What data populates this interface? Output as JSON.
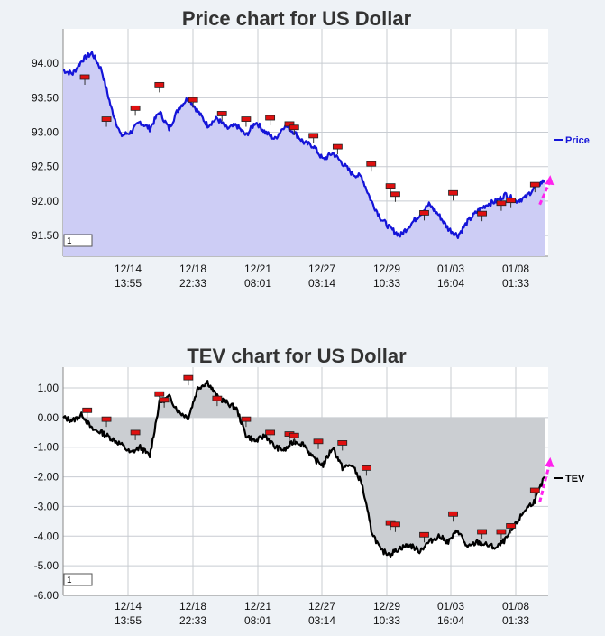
{
  "chart_data": [
    {
      "type": "area",
      "title": "Price chart for US Dollar",
      "legend": "Price",
      "legend_placement": "right",
      "y_ticks": [
        "94.00",
        "93.50",
        "93.00",
        "92.50",
        "92.00",
        "91.50"
      ],
      "y_tick_values": [
        94.0,
        93.5,
        93.0,
        92.5,
        92.0,
        91.5
      ],
      "ylim": [
        91.2,
        94.5
      ],
      "baseline": 91.2,
      "x_ticks": [
        {
          "date": "12/14",
          "time": "13:55"
        },
        {
          "date": "12/18",
          "time": "22:33"
        },
        {
          "date": "12/21",
          "time": "08:01"
        },
        {
          "date": "12/27",
          "time": "03:14"
        },
        {
          "date": "12/29",
          "time": "10:33"
        },
        {
          "date": "01/03",
          "time": "16:04"
        },
        {
          "date": "01/08",
          "time": "01:33"
        }
      ],
      "grid": true,
      "line_color": "#1414d8",
      "fill_color": "#cdcdf5",
      "slider_value": "1",
      "series_points": [
        [
          0,
          93.9
        ],
        [
          2,
          93.85
        ],
        [
          4,
          94.05
        ],
        [
          6,
          94.15
        ],
        [
          8,
          93.9
        ],
        [
          10,
          93.35
        ],
        [
          12,
          92.95
        ],
        [
          14,
          93.0
        ],
        [
          16,
          93.15
        ],
        [
          18,
          93.05
        ],
        [
          20,
          93.3
        ],
        [
          22,
          93.05
        ],
        [
          24,
          93.35
        ],
        [
          26,
          93.5
        ],
        [
          28,
          93.3
        ],
        [
          30,
          93.1
        ],
        [
          32,
          93.2
        ],
        [
          34,
          93.05
        ],
        [
          36,
          93.1
        ],
        [
          38,
          92.95
        ],
        [
          40,
          93.15
        ],
        [
          42,
          93.0
        ],
        [
          44,
          92.9
        ],
        [
          46,
          93.1
        ],
        [
          48,
          93.0
        ],
        [
          50,
          92.85
        ],
        [
          52,
          92.8
        ],
        [
          54,
          92.6
        ],
        [
          56,
          92.7
        ],
        [
          58,
          92.55
        ],
        [
          60,
          92.4
        ],
        [
          62,
          92.35
        ],
        [
          64,
          92.0
        ],
        [
          66,
          91.75
        ],
        [
          68,
          91.6
        ],
        [
          70,
          91.5
        ],
        [
          72,
          91.65
        ],
        [
          74,
          91.8
        ],
        [
          76,
          91.95
        ],
        [
          78,
          91.8
        ],
        [
          80,
          91.6
        ],
        [
          82,
          91.5
        ],
        [
          84,
          91.7
        ],
        [
          86,
          91.85
        ],
        [
          88,
          91.95
        ],
        [
          90,
          92.0
        ],
        [
          92,
          92.1
        ],
        [
          94,
          92.0
        ],
        [
          96,
          92.05
        ],
        [
          98,
          92.2
        ],
        [
          100,
          92.3
        ]
      ],
      "markers": [
        [
          4.5,
          93.78
        ],
        [
          9,
          93.17
        ],
        [
          15,
          93.33
        ],
        [
          20,
          93.67
        ],
        [
          27,
          93.45
        ],
        [
          33,
          93.25
        ],
        [
          38,
          93.17
        ],
        [
          43,
          93.19
        ],
        [
          47,
          93.1
        ],
        [
          48,
          93.05
        ],
        [
          52,
          92.93
        ],
        [
          57,
          92.77
        ],
        [
          64,
          92.52
        ],
        [
          68,
          92.2
        ],
        [
          69,
          92.08
        ],
        [
          75,
          91.81
        ],
        [
          81,
          92.1
        ],
        [
          87,
          91.8
        ],
        [
          91,
          91.95
        ],
        [
          93,
          91.99
        ],
        [
          98,
          92.22
        ]
      ],
      "arrow": {
        "from": 99,
        "to": 101,
        "from_value": 91.95,
        "to_value": 92.35
      }
    },
    {
      "type": "area",
      "title": "TEV chart for US Dollar",
      "legend": "TEV",
      "legend_placement": "right",
      "y_ticks": [
        "1.00",
        "0.00",
        "-1.00",
        "-2.00",
        "-3.00",
        "-4.00",
        "-5.00",
        "-6.00"
      ],
      "y_tick_values": [
        1,
        0,
        -1,
        -2,
        -3,
        -4,
        -5,
        -6
      ],
      "ylim": [
        -6.0,
        1.7
      ],
      "baseline": 0,
      "x_ticks": [
        {
          "date": "12/14",
          "time": "13:55"
        },
        {
          "date": "12/18",
          "time": "22:33"
        },
        {
          "date": "12/21",
          "time": "08:01"
        },
        {
          "date": "12/27",
          "time": "03:14"
        },
        {
          "date": "12/29",
          "time": "10:33"
        },
        {
          "date": "01/03",
          "time": "16:04"
        },
        {
          "date": "01/08",
          "time": "01:33"
        }
      ],
      "grid": true,
      "line_color": "#000000",
      "fill_color": "#cbced2",
      "slider_value": "1",
      "series_points": [
        [
          0,
          0.0
        ],
        [
          2,
          -0.1
        ],
        [
          4,
          0.1
        ],
        [
          6,
          -0.4
        ],
        [
          8,
          -0.5
        ],
        [
          10,
          -0.7
        ],
        [
          12,
          -0.9
        ],
        [
          14,
          -1.2
        ],
        [
          16,
          -1.0
        ],
        [
          18,
          -1.3
        ],
        [
          20,
          0.5
        ],
        [
          22,
          0.7
        ],
        [
          24,
          0.2
        ],
        [
          26,
          0.0
        ],
        [
          28,
          1.0
        ],
        [
          30,
          1.2
        ],
        [
          32,
          0.7
        ],
        [
          34,
          0.5
        ],
        [
          36,
          0.3
        ],
        [
          38,
          -0.6
        ],
        [
          40,
          -0.8
        ],
        [
          42,
          -0.6
        ],
        [
          44,
          -1.0
        ],
        [
          46,
          -1.1
        ],
        [
          48,
          -0.8
        ],
        [
          50,
          -0.9
        ],
        [
          52,
          -1.4
        ],
        [
          54,
          -1.6
        ],
        [
          56,
          -1.0
        ],
        [
          58,
          -1.7
        ],
        [
          60,
          -1.6
        ],
        [
          62,
          -2.2
        ],
        [
          64,
          -3.8
        ],
        [
          66,
          -4.5
        ],
        [
          68,
          -4.6
        ],
        [
          70,
          -4.4
        ],
        [
          72,
          -4.3
        ],
        [
          74,
          -4.5
        ],
        [
          76,
          -4.2
        ],
        [
          78,
          -4.0
        ],
        [
          80,
          -4.2
        ],
        [
          82,
          -3.8
        ],
        [
          84,
          -4.4
        ],
        [
          86,
          -4.2
        ],
        [
          88,
          -4.3
        ],
        [
          90,
          -4.4
        ],
        [
          92,
          -4.1
        ],
        [
          94,
          -3.6
        ],
        [
          96,
          -3.1
        ],
        [
          98,
          -2.8
        ],
        [
          100,
          -2.0
        ]
      ],
      "markers": [
        [
          5,
          0.2
        ],
        [
          9,
          -0.1
        ],
        [
          15,
          -0.55
        ],
        [
          20,
          0.75
        ],
        [
          21,
          0.55
        ],
        [
          26,
          1.3
        ],
        [
          32,
          0.6
        ],
        [
          38,
          -0.1
        ],
        [
          43,
          -0.55
        ],
        [
          47,
          -0.6
        ],
        [
          48,
          -0.65
        ],
        [
          53,
          -0.85
        ],
        [
          58,
          -0.9
        ],
        [
          63,
          -1.75
        ],
        [
          68,
          -3.6
        ],
        [
          69,
          -3.65
        ],
        [
          75,
          -4.0
        ],
        [
          81,
          -3.3
        ],
        [
          87,
          -3.9
        ],
        [
          91,
          -3.9
        ],
        [
          93,
          -3.7
        ],
        [
          98,
          -2.5
        ]
      ],
      "arrow": {
        "from": 99,
        "to": 101,
        "from_value": -2.85,
        "to_value": -1.4
      }
    }
  ]
}
